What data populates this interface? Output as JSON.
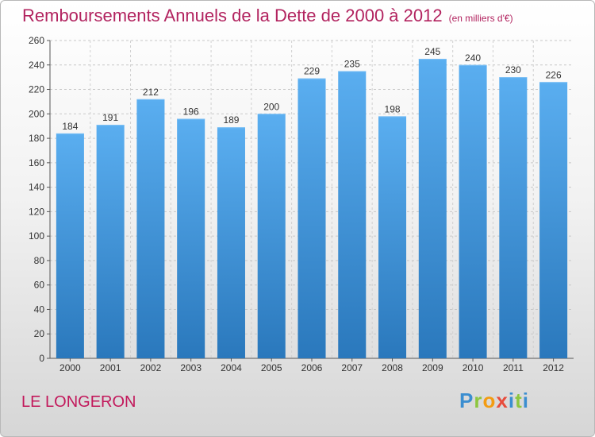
{
  "page": {
    "city": "LE LONGERON",
    "logo_text": "Proxiti"
  },
  "chart_data": {
    "type": "bar",
    "title": "Remboursements Annuels de la Dette de 2000 à 2012",
    "subtitle": "(en milliers d'€)",
    "categories": [
      "2000",
      "2001",
      "2002",
      "2003",
      "2004",
      "2005",
      "2006",
      "2007",
      "2008",
      "2009",
      "2010",
      "2011",
      "2012"
    ],
    "values": [
      184,
      191,
      212,
      196,
      189,
      200,
      229,
      235,
      198,
      245,
      240,
      230,
      226
    ],
    "xlabel": "",
    "ylabel": "",
    "ylim": [
      0,
      260
    ],
    "yticks": [
      0,
      20,
      40,
      60,
      80,
      100,
      120,
      140,
      160,
      180,
      200,
      220,
      240,
      260
    ],
    "grid": true,
    "bar_color": "#4a9fe0",
    "title_color": "#b2235f"
  }
}
